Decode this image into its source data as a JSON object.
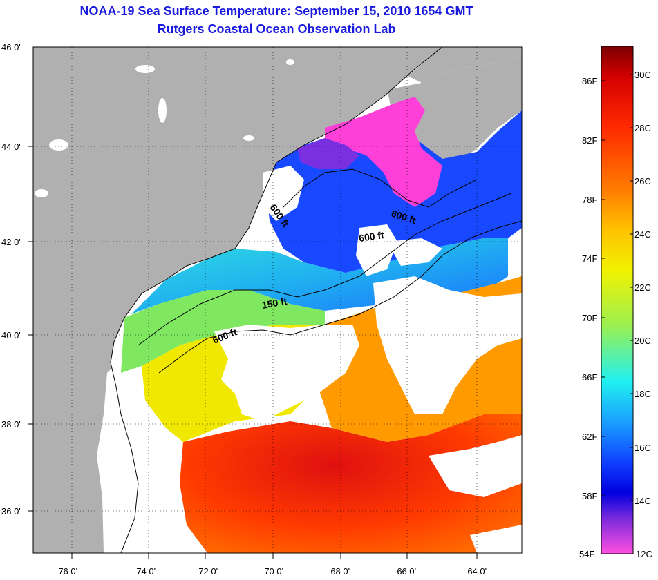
{
  "header": {
    "title": "NOAA-19 Sea Surface Temperature:  September 15, 2010 1654 GMT",
    "subtitle": "Rutgers Coastal Ocean Observation Lab"
  },
  "map": {
    "lat_labels": [
      "46 0'",
      "44 0'",
      "42 0'",
      "40 0'",
      "38 0'",
      "36 0'"
    ],
    "lon_labels": [
      "-76 0'",
      "-74 0'",
      "-72 0'",
      "-70 0'",
      "-68 0'",
      "-66 0'",
      "-64 0'"
    ],
    "contour_labels": [
      "600 ft",
      "600 ft",
      "600 ft",
      "150 ft",
      "600 ft"
    ],
    "colors": {
      "land": "#b0b0b0",
      "no_data": "#ffffff",
      "cold": "#ff33cc",
      "mid": "#1040ff",
      "warm": "#ff2200"
    }
  },
  "colorbar": {
    "fahrenheit_labels": [
      "86F",
      "82F",
      "78F",
      "74F",
      "70F",
      "66F",
      "62F",
      "58F",
      "54F"
    ],
    "celsius_labels": [
      "30C",
      "28C",
      "26C",
      "24C",
      "22C",
      "20C",
      "18C",
      "16C",
      "14C",
      "12C"
    ],
    "stops": [
      "#7a0000",
      "#d40000",
      "#ff2a00",
      "#ff7a00",
      "#ffc000",
      "#f2f200",
      "#9cf050",
      "#20f0f0",
      "#1aa0ff",
      "#1040ff",
      "#0000e0",
      "#7a2adc",
      "#ff50e0"
    ]
  }
}
